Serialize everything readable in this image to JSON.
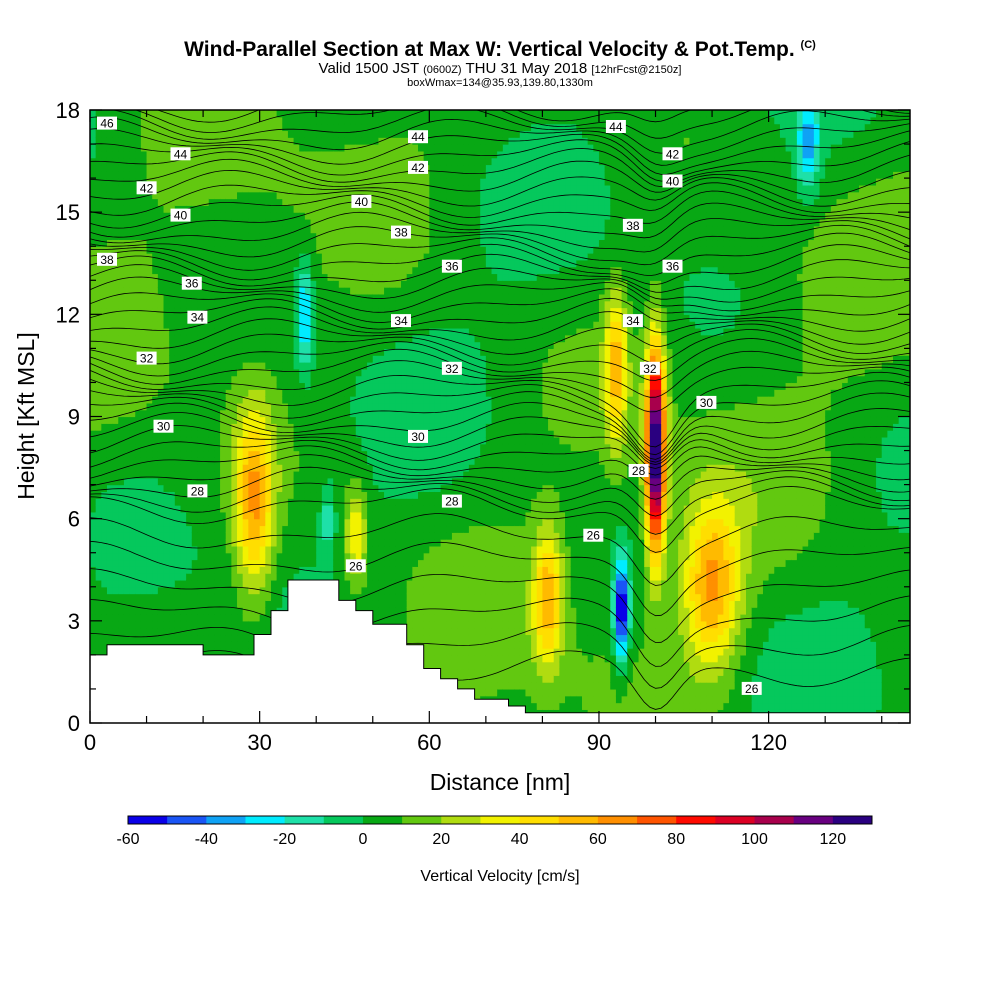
{
  "title": "Wind-Parallel Section at Max W: Vertical Velocity & Pot.Temp.",
  "title_mark": "(C)",
  "subtitle_main": "Valid 1500 JST",
  "subtitle_utc": "(0600Z)",
  "subtitle_date": "THU 31 May 2018",
  "subtitle_fcst": "[12hrFcst@2150z]",
  "meta": "boxWmax=134@35.93,139.80,1330m",
  "chart_data": {
    "type": "heatmap",
    "xlabel": "Distance [nm]",
    "ylabel": "Height [Kft MSL]",
    "xlim": [
      0,
      145
    ],
    "ylim": [
      0,
      18
    ],
    "x_ticks": [
      "0",
      "30",
      "60",
      "90",
      "120"
    ],
    "x_tick_values": [
      0,
      30,
      60,
      90,
      120
    ],
    "y_ticks": [
      "0",
      "3",
      "6",
      "9",
      "12",
      "15",
      "18"
    ],
    "y_tick_values": [
      0,
      3,
      6,
      9,
      12,
      15,
      18
    ],
    "colorbar": {
      "label": "Vertical Velocity [cm/s]",
      "min": -60,
      "max": 130,
      "step": 10,
      "tick_labels": [
        "-60",
        "-40",
        "-20",
        "0",
        "20",
        "40",
        "60",
        "80",
        "100",
        "120"
      ],
      "colors": [
        "#0a00e8",
        "#1a55f5",
        "#0fa2f5",
        "#00ecff",
        "#1ee0a8",
        "#05c85c",
        "#08a814",
        "#62c810",
        "#b0dc10",
        "#f2f200",
        "#ffde00",
        "#ffba00",
        "#ff8f00",
        "#ff5400",
        "#ff0a00",
        "#dc0024",
        "#a8004c",
        "#680080",
        "#2a0080"
      ]
    },
    "terrain_profile": [
      [
        0,
        2.0
      ],
      [
        3,
        2.0
      ],
      [
        3,
        2.3
      ],
      [
        20,
        2.3
      ],
      [
        20,
        2.0
      ],
      [
        29,
        2.0
      ],
      [
        29,
        2.6
      ],
      [
        32,
        2.6
      ],
      [
        32,
        3.3
      ],
      [
        35,
        3.3
      ],
      [
        35,
        4.2
      ],
      [
        44,
        4.2
      ],
      [
        44,
        3.6
      ],
      [
        47,
        3.6
      ],
      [
        47,
        3.3
      ],
      [
        50,
        3.3
      ],
      [
        50,
        2.9
      ],
      [
        56,
        2.9
      ],
      [
        56,
        2.3
      ],
      [
        59,
        2.3
      ],
      [
        59,
        1.6
      ],
      [
        62,
        1.6
      ],
      [
        62,
        1.3
      ],
      [
        65,
        1.3
      ],
      [
        65,
        1.0
      ],
      [
        68,
        1.0
      ],
      [
        68,
        0.7
      ],
      [
        74,
        0.7
      ],
      [
        74,
        0.5
      ],
      [
        77,
        0.5
      ],
      [
        77,
        0.3
      ],
      [
        145,
        0.3
      ]
    ],
    "updrafts": [
      {
        "x": 29,
        "z": 6.5,
        "sx": 3.5,
        "sz": 2.8,
        "w": 55
      },
      {
        "x": 47,
        "z": 5.5,
        "sx": 2.0,
        "sz": 1.5,
        "w": 35
      },
      {
        "x": 81,
        "z": 3.7,
        "sx": 2.6,
        "sz": 2.0,
        "w": 50
      },
      {
        "x": 93,
        "z": 10.5,
        "sx": 2.0,
        "sz": 2.2,
        "w": 48
      },
      {
        "x": 100,
        "z": 8.0,
        "sx": 1.7,
        "sz": 3.0,
        "w": 130
      },
      {
        "x": 110,
        "z": 4.0,
        "sx": 5.0,
        "sz": 2.4,
        "w": 55
      }
    ],
    "downdrafts": [
      {
        "x": 94,
        "z": 3.3,
        "sx": 1.3,
        "sz": 1.5,
        "w": -70
      },
      {
        "x": 38,
        "z": 12.0,
        "sx": 1.5,
        "sz": 1.6,
        "w": -35
      },
      {
        "x": 127,
        "z": 17.0,
        "sx": 2.0,
        "sz": 1.5,
        "w": -35
      },
      {
        "x": 42,
        "z": 6.0,
        "sx": 1.3,
        "sz": 1.0,
        "w": -20
      }
    ],
    "theta_labels": [
      {
        "text": "46",
        "x": 3,
        "z": 17.6
      },
      {
        "text": "44",
        "x": 16,
        "z": 16.7
      },
      {
        "text": "44",
        "x": 58,
        "z": 17.2
      },
      {
        "text": "44",
        "x": 93,
        "z": 17.5
      },
      {
        "text": "42",
        "x": 10,
        "z": 15.7
      },
      {
        "text": "42",
        "x": 58,
        "z": 16.3
      },
      {
        "text": "42",
        "x": 103,
        "z": 16.7
      },
      {
        "text": "40",
        "x": 16,
        "z": 14.9
      },
      {
        "text": "40",
        "x": 48,
        "z": 15.3
      },
      {
        "text": "40",
        "x": 103,
        "z": 15.9
      },
      {
        "text": "38",
        "x": 3,
        "z": 13.6
      },
      {
        "text": "38",
        "x": 55,
        "z": 14.4
      },
      {
        "text": "38",
        "x": 96,
        "z": 14.6
      },
      {
        "text": "36",
        "x": 18,
        "z": 12.9
      },
      {
        "text": "36",
        "x": 64,
        "z": 13.4
      },
      {
        "text": "36",
        "x": 103,
        "z": 13.4
      },
      {
        "text": "34",
        "x": 19,
        "z": 11.9
      },
      {
        "text": "34",
        "x": 55,
        "z": 11.8
      },
      {
        "text": "34",
        "x": 96,
        "z": 11.8
      },
      {
        "text": "32",
        "x": 10,
        "z": 10.7
      },
      {
        "text": "32",
        "x": 64,
        "z": 10.4
      },
      {
        "text": "32",
        "x": 99,
        "z": 10.4
      },
      {
        "text": "30",
        "x": 13,
        "z": 8.7
      },
      {
        "text": "30",
        "x": 58,
        "z": 8.4
      },
      {
        "text": "30",
        "x": 109,
        "z": 9.4
      },
      {
        "text": "28",
        "x": 19,
        "z": 6.8
      },
      {
        "text": "28",
        "x": 64,
        "z": 6.5
      },
      {
        "text": "28",
        "x": 97,
        "z": 7.4
      },
      {
        "text": "26",
        "x": 47,
        "z": 4.6
      },
      {
        "text": "26",
        "x": 89,
        "z": 5.5
      },
      {
        "text": "26",
        "x": 117,
        "z": 1.0
      }
    ]
  }
}
